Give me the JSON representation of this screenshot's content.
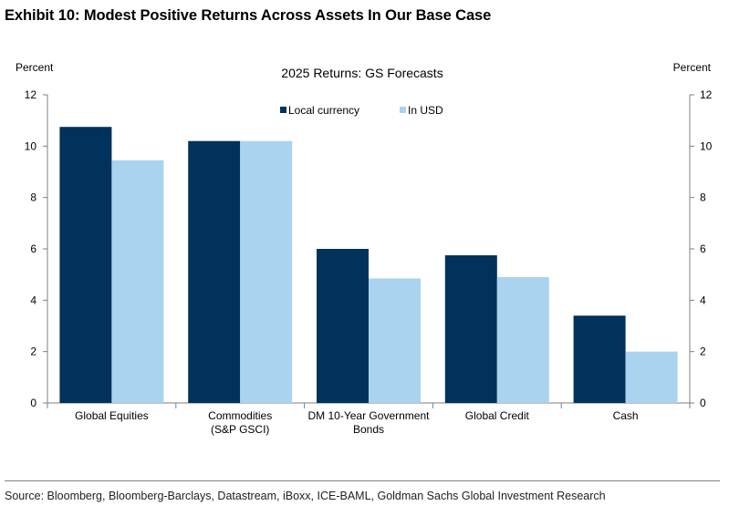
{
  "exhibit_title": "Exhibit 10: Modest Positive Returns Across Assets In Our Base Case",
  "source": "Source: Bloomberg, Bloomberg-Barclays, Datastream, iBoxx, ICE-BAML, Goldman Sachs Global Investment Research",
  "colors": {
    "local": "#00325b",
    "usd": "#a9d3ef",
    "axis": "#7f7f7f"
  },
  "chart_data": {
    "type": "bar",
    "title": "2025 Returns: GS Forecasts",
    "ylabel_left": "Percent",
    "ylabel_right": "Percent",
    "xlabel": "",
    "ylim": [
      0,
      12
    ],
    "yticks": [
      0,
      2,
      4,
      6,
      8,
      10,
      12
    ],
    "legend_position": "top-center",
    "grid": false,
    "categories": [
      [
        "Global Equities"
      ],
      [
        "Commodities",
        "(S&P GSCI)"
      ],
      [
        "DM 10-Year Government",
        "Bonds"
      ],
      [
        "Global Credit"
      ],
      [
        "Cash"
      ]
    ],
    "series": [
      {
        "name": "Local currency",
        "values": [
          10.75,
          10.2,
          6.0,
          5.75,
          3.4
        ]
      },
      {
        "name": "In USD",
        "values": [
          9.45,
          10.2,
          4.85,
          4.9,
          2.0
        ]
      }
    ]
  }
}
